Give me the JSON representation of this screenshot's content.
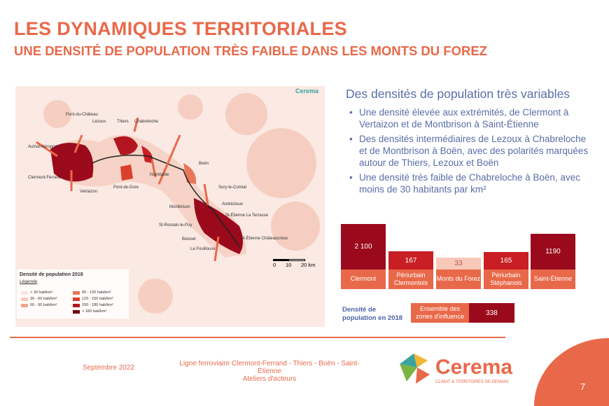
{
  "header": {
    "title": "LES DYNAMIQUES TERRITORIALES",
    "subtitle": "UNE DENSITÉ DE POPULATION TRÈS FAIBLE DANS LES MONTS DU FOREZ"
  },
  "map": {
    "logo": "Cerema",
    "labels": [
      "Aulnat-Aéroport",
      "Pont-du-Château",
      "Lezoux",
      "Thiers",
      "Chabreloche",
      "Clermont-Ferrand",
      "Vertaizon",
      "Pont-de-Dore",
      "Noirétable",
      "Boën",
      "Sury-le-Comtal",
      "Montbrison",
      "Andrézieux",
      "St-Étienne La Terrasse",
      "St-Romain-le-Puy",
      "Boisset",
      "La Fouillouse",
      "St-Étienne Châteaucreux"
    ],
    "scale": [
      "0",
      "10",
      "20 km"
    ],
    "legend": {
      "title": "Densité de population 2018",
      "subtitle": "Légende",
      "items": [
        {
          "label": "< 30 hab/km²",
          "color": "#fbe4dc"
        },
        {
          "label": "30 - 60 hab/km²",
          "color": "#f7cbbb"
        },
        {
          "label": "60 - 90 hab/km²",
          "color": "#efa38d"
        },
        {
          "label": "90 - 120 hab/km²",
          "color": "#e8775a"
        },
        {
          "label": "120 - 150 hab/km²",
          "color": "#d9412e"
        },
        {
          "label": "150 - 180 hab/km²",
          "color": "#b3161e"
        },
        {
          "label": "> 180 hab/km²",
          "color": "#700015"
        }
      ]
    }
  },
  "right": {
    "title": "Des densités de population très variables",
    "bullets": [
      "Une densité élevée aux extrémités, de Clermont à Vertaizon et de Montbrison à Saint-Étienne",
      "Des densités intermédiaires de Lezoux à Chabreloche et de Montbrison à Boën, avec des polarités marquées autour de Thiers, Lezoux et Boën",
      "Une densité très faible de Chabreloche à Boën, avec moins de 30 habitants par km²"
    ]
  },
  "bars": [
    {
      "name": "Clermont",
      "value": "2 100",
      "n": 2100,
      "color": "#9b0a1c"
    },
    {
      "name": "Périurbain Clermontois",
      "value": "167",
      "n": 167,
      "color": "#c81e24"
    },
    {
      "name": "Monts du Forez",
      "value": "33",
      "n": 33,
      "color": "#f8c9b8"
    },
    {
      "name": "Périurbain Stéphanois",
      "value": "165",
      "n": 165,
      "color": "#c81e24"
    },
    {
      "name": "Saint-Étienne",
      "value": "1190",
      "n": 1190,
      "color": "#9b0a1c"
    }
  ],
  "total": {
    "label": "Densité de population en 2018",
    "name": "Ensemble des zones d'influence",
    "value": "338"
  },
  "footer": {
    "date": "Septembre 2022",
    "line": "Ligne ferroviaire Clermont-Ferrand - Thiers - Boën - Saint-Étienne",
    "sub": "Ateliers d'acteurs",
    "logo": "Cerema",
    "tagline": "CLIMAT & TERRITOIRES DE DEMAIN",
    "page": "7"
  }
}
